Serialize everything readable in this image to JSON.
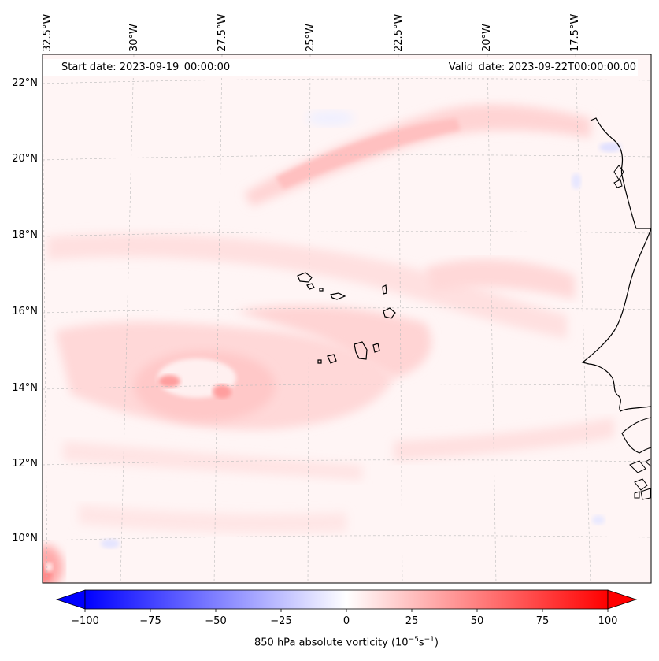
{
  "map": {
    "start_date": "Start date: 2023-09-19_00:00:00",
    "valid_date": "Valid_date: 2023-09-22T00:00:00.00",
    "lon_labels": [
      "32.5°W",
      "30°W",
      "27.5°W",
      "25°W",
      "22.5°W",
      "20°W",
      "17.5°W"
    ],
    "lat_labels": [
      "22°N",
      "20°N",
      "18°N",
      "16°N",
      "14°N",
      "12°N",
      "10°N"
    ],
    "field": "850 hPa absolute vorticity",
    "colors": {
      "positive": "#ff0000",
      "negative": "#0000ff",
      "coast": "#000000"
    }
  },
  "colorbar": {
    "ticks": [
      "−100",
      "−75",
      "−50",
      "−25",
      "0",
      "25",
      "50",
      "75",
      "100"
    ],
    "label_prefix": "850 hPa absolute vorticity (10",
    "label_exp1": "−5",
    "label_mid": "s",
    "label_exp2": "−1",
    "label_suffix": ")",
    "min": -100,
    "max": 100
  }
}
